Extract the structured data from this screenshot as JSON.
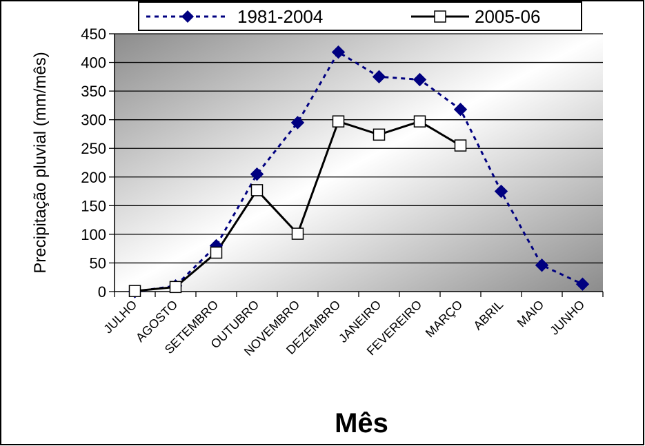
{
  "chart_data": {
    "type": "line",
    "xlabel": "Mês",
    "ylabel": "Precipitação pluvial (mm/mês)",
    "ylim": [
      0,
      450
    ],
    "yticks": [
      0,
      50,
      100,
      150,
      200,
      250,
      300,
      350,
      400,
      450
    ],
    "grid": true,
    "legend_position": "top",
    "categories": [
      "JULHO",
      "AGOSTO",
      "SETEMBRO",
      "OUTUBRO",
      "NOVEMBRO",
      "DEZEMBRO",
      "JANEIRO",
      "FEVEREIRO",
      "MARÇO",
      "ABRIL",
      "MAIO",
      "JUNHO"
    ],
    "series": [
      {
        "name": "1981-2004",
        "color": "#000080",
        "line_style": "dotted",
        "marker": "diamond",
        "values": [
          0,
          10,
          80,
          205,
          295,
          418,
          375,
          370,
          318,
          175,
          46,
          13
        ]
      },
      {
        "name": "2005-06",
        "color": "#000000",
        "line_style": "solid",
        "marker": "square-open",
        "values": [
          1,
          8,
          68,
          177,
          101,
          297,
          274,
          297,
          255,
          null,
          null,
          null
        ]
      }
    ]
  }
}
